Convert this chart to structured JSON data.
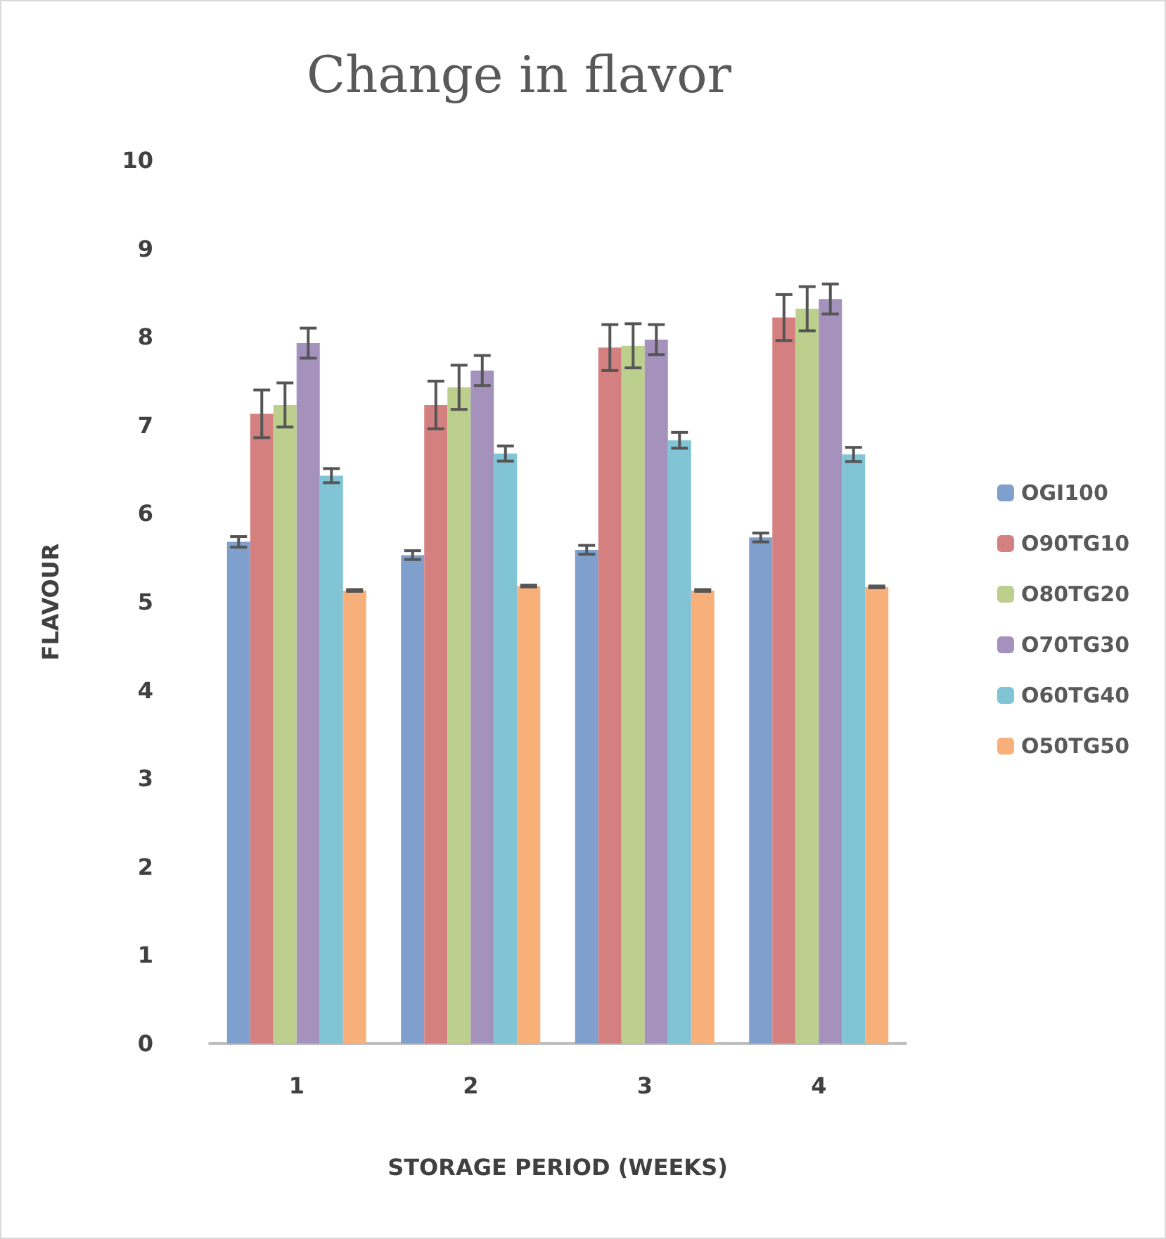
{
  "chart_data": {
    "type": "bar",
    "title": "Change in flavor",
    "xlabel": "STORAGE PERIOD (WEEKS)",
    "ylabel": "FLAVOUR",
    "categories": [
      "1",
      "2",
      "3",
      "4"
    ],
    "series": [
      {
        "name": "OGI100",
        "color": "#7f9fcc",
        "values": [
          5.68,
          5.53,
          5.59,
          5.73
        ],
        "errors": [
          0.06,
          0.05,
          0.05,
          0.05
        ]
      },
      {
        "name": "O90TG10",
        "color": "#d48080",
        "values": [
          7.13,
          7.23,
          7.88,
          8.22
        ],
        "errors": [
          0.27,
          0.27,
          0.26,
          0.26
        ]
      },
      {
        "name": "O80TG20",
        "color": "#bccf8c",
        "values": [
          7.23,
          7.43,
          7.9,
          8.32
        ],
        "errors": [
          0.25,
          0.25,
          0.25,
          0.25
        ]
      },
      {
        "name": "O70TG30",
        "color": "#a492bd",
        "values": [
          7.93,
          7.62,
          7.97,
          8.43
        ],
        "errors": [
          0.17,
          0.17,
          0.17,
          0.17
        ]
      },
      {
        "name": "O60TG40",
        "color": "#80c4d6",
        "values": [
          6.43,
          6.68,
          6.83,
          6.67
        ],
        "errors": [
          0.08,
          0.085,
          0.09,
          0.08
        ]
      },
      {
        "name": "O50TG50",
        "color": "#f8b07a",
        "values": [
          5.13,
          5.18,
          5.13,
          5.17
        ],
        "errors": [
          0.01,
          0.01,
          0.01,
          0.01
        ]
      }
    ],
    "ylim": [
      0,
      10
    ],
    "yticks": [
      0,
      1,
      2,
      3,
      4,
      5,
      6,
      7,
      8,
      9,
      10
    ],
    "grid": false,
    "legend": "right"
  }
}
